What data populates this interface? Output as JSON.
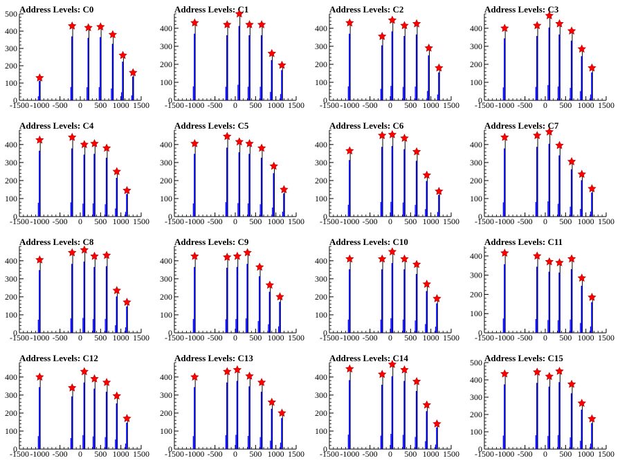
{
  "chart_data": [
    {
      "type": "bar",
      "title": "Address Levels: C0",
      "xlim": [
        -1500,
        1500
      ],
      "ylim": [
        0,
        500
      ],
      "yticks": [
        0,
        100,
        200,
        300,
        400,
        500
      ],
      "peaks": [
        {
          "x": -1000,
          "y": 130
        },
        {
          "x": -200,
          "y": 430
        },
        {
          "x": 200,
          "y": 420
        },
        {
          "x": 500,
          "y": 425
        },
        {
          "x": 800,
          "y": 380
        },
        {
          "x": 1050,
          "y": 260
        },
        {
          "x": 1300,
          "y": 160
        }
      ]
    },
    {
      "type": "bar",
      "title": "Address Levels: C1",
      "xlim": [
        -1500,
        1500
      ],
      "ylim": [
        0,
        480
      ],
      "yticks": [
        0,
        100,
        200,
        300,
        400
      ],
      "peaks": [
        {
          "x": -1000,
          "y": 430
        },
        {
          "x": -200,
          "y": 420
        },
        {
          "x": 100,
          "y": 480
        },
        {
          "x": 350,
          "y": 420
        },
        {
          "x": 650,
          "y": 420
        },
        {
          "x": 900,
          "y": 260
        },
        {
          "x": 1150,
          "y": 195
        }
      ]
    },
    {
      "type": "bar",
      "title": "Address Levels: C2",
      "xlim": [
        -1500,
        1500
      ],
      "ylim": [
        0,
        480
      ],
      "yticks": [
        0,
        100,
        200,
        300,
        400
      ],
      "peaks": [
        {
          "x": -1000,
          "y": 430
        },
        {
          "x": -200,
          "y": 355
        },
        {
          "x": 50,
          "y": 445
        },
        {
          "x": 350,
          "y": 415
        },
        {
          "x": 650,
          "y": 425
        },
        {
          "x": 950,
          "y": 290
        },
        {
          "x": 1200,
          "y": 180
        }
      ]
    },
    {
      "type": "bar",
      "title": "Address Levels: C3",
      "xlim": [
        -1500,
        1500
      ],
      "ylim": [
        0,
        480
      ],
      "yticks": [
        0,
        100,
        200,
        300,
        400
      ],
      "peaks": [
        {
          "x": -1000,
          "y": 400
        },
        {
          "x": -200,
          "y": 415
        },
        {
          "x": 100,
          "y": 470
        },
        {
          "x": 350,
          "y": 425
        },
        {
          "x": 650,
          "y": 385
        },
        {
          "x": 900,
          "y": 285
        },
        {
          "x": 1150,
          "y": 180
        }
      ]
    },
    {
      "type": "bar",
      "title": "Address Levels: C4",
      "xlim": [
        -1500,
        1500
      ],
      "ylim": [
        0,
        480
      ],
      "yticks": [
        0,
        100,
        200,
        300,
        400
      ],
      "peaks": [
        {
          "x": -1000,
          "y": 425
        },
        {
          "x": -200,
          "y": 440
        },
        {
          "x": 100,
          "y": 400
        },
        {
          "x": 350,
          "y": 405
        },
        {
          "x": 650,
          "y": 380
        },
        {
          "x": 900,
          "y": 250
        },
        {
          "x": 1150,
          "y": 145
        }
      ]
    },
    {
      "type": "bar",
      "title": "Address Levels: C5",
      "xlim": [
        -1500,
        1500
      ],
      "ylim": [
        0,
        480
      ],
      "yticks": [
        0,
        100,
        200,
        300,
        400
      ],
      "peaks": [
        {
          "x": -1000,
          "y": 405
        },
        {
          "x": -200,
          "y": 445
        },
        {
          "x": 100,
          "y": 415
        },
        {
          "x": 350,
          "y": 405
        },
        {
          "x": 650,
          "y": 380
        },
        {
          "x": 950,
          "y": 280
        },
        {
          "x": 1200,
          "y": 150
        }
      ]
    },
    {
      "type": "bar",
      "title": "Address Levels: C6",
      "xlim": [
        -1500,
        1500
      ],
      "ylim": [
        0,
        480
      ],
      "yticks": [
        0,
        100,
        200,
        300,
        400
      ],
      "peaks": [
        {
          "x": -1000,
          "y": 365
        },
        {
          "x": -200,
          "y": 450
        },
        {
          "x": 50,
          "y": 455
        },
        {
          "x": 350,
          "y": 435
        },
        {
          "x": 650,
          "y": 360
        },
        {
          "x": 900,
          "y": 230
        },
        {
          "x": 1200,
          "y": 140
        }
      ]
    },
    {
      "type": "bar",
      "title": "Address Levels: C7",
      "xlim": [
        -1500,
        1500
      ],
      "ylim": [
        0,
        480
      ],
      "yticks": [
        0,
        100,
        200,
        300,
        400
      ],
      "peaks": [
        {
          "x": -1000,
          "y": 440
        },
        {
          "x": -200,
          "y": 450
        },
        {
          "x": 100,
          "y": 470
        },
        {
          "x": 350,
          "y": 395
        },
        {
          "x": 650,
          "y": 305
        },
        {
          "x": 900,
          "y": 235
        },
        {
          "x": 1150,
          "y": 155
        }
      ]
    },
    {
      "type": "bar",
      "title": "Address Levels: C8",
      "xlim": [
        -1500,
        1500
      ],
      "ylim": [
        0,
        480
      ],
      "yticks": [
        0,
        100,
        200,
        300,
        400
      ],
      "peaks": [
        {
          "x": -1000,
          "y": 405
        },
        {
          "x": -200,
          "y": 445
        },
        {
          "x": 100,
          "y": 460
        },
        {
          "x": 350,
          "y": 425
        },
        {
          "x": 650,
          "y": 430
        },
        {
          "x": 900,
          "y": 235
        },
        {
          "x": 1150,
          "y": 170
        }
      ]
    },
    {
      "type": "bar",
      "title": "Address Levels: C9",
      "xlim": [
        -1500,
        1500
      ],
      "ylim": [
        0,
        480
      ],
      "yticks": [
        0,
        100,
        200,
        300,
        400
      ],
      "peaks": [
        {
          "x": -1000,
          "y": 425
        },
        {
          "x": -200,
          "y": 420
        },
        {
          "x": 50,
          "y": 425
        },
        {
          "x": 300,
          "y": 445
        },
        {
          "x": 600,
          "y": 365
        },
        {
          "x": 850,
          "y": 265
        },
        {
          "x": 1100,
          "y": 200
        }
      ]
    },
    {
      "type": "bar",
      "title": "Address Levels: C10",
      "xlim": [
        -1500,
        1500
      ],
      "ylim": [
        0,
        480
      ],
      "yticks": [
        0,
        100,
        200,
        300,
        400
      ],
      "peaks": [
        {
          "x": -1000,
          "y": 410
        },
        {
          "x": -200,
          "y": 410
        },
        {
          "x": 50,
          "y": 450
        },
        {
          "x": 350,
          "y": 410
        },
        {
          "x": 650,
          "y": 380
        },
        {
          "x": 900,
          "y": 270
        },
        {
          "x": 1150,
          "y": 190
        }
      ]
    },
    {
      "type": "bar",
      "title": "Address Levels: C11",
      "xlim": [
        -1500,
        1500
      ],
      "ylim": [
        0,
        450
      ],
      "yticks": [
        0,
        100,
        200,
        300,
        400
      ],
      "peaks": [
        {
          "x": -1000,
          "y": 415
        },
        {
          "x": -200,
          "y": 400
        },
        {
          "x": 100,
          "y": 370
        },
        {
          "x": 350,
          "y": 365
        },
        {
          "x": 650,
          "y": 385
        },
        {
          "x": 900,
          "y": 285
        },
        {
          "x": 1150,
          "y": 185
        }
      ]
    },
    {
      "type": "bar",
      "title": "Address Levels: C12",
      "xlim": [
        -1500,
        1500
      ],
      "ylim": [
        0,
        480
      ],
      "yticks": [
        0,
        100,
        200,
        300,
        400
      ],
      "peaks": [
        {
          "x": -1000,
          "y": 400
        },
        {
          "x": -200,
          "y": 340
        },
        {
          "x": 100,
          "y": 430
        },
        {
          "x": 350,
          "y": 390
        },
        {
          "x": 650,
          "y": 370
        },
        {
          "x": 900,
          "y": 295
        },
        {
          "x": 1150,
          "y": 170
        }
      ]
    },
    {
      "type": "bar",
      "title": "Address Levels: C13",
      "xlim": [
        -1500,
        1500
      ],
      "ylim": [
        0,
        480
      ],
      "yticks": [
        0,
        100,
        200,
        300,
        400
      ],
      "peaks": [
        {
          "x": -1000,
          "y": 400
        },
        {
          "x": -200,
          "y": 430
        },
        {
          "x": 50,
          "y": 440
        },
        {
          "x": 350,
          "y": 405
        },
        {
          "x": 650,
          "y": 370
        },
        {
          "x": 900,
          "y": 260
        },
        {
          "x": 1150,
          "y": 200
        }
      ]
    },
    {
      "type": "bar",
      "title": "Address Levels: C14",
      "xlim": [
        -1500,
        1500
      ],
      "ylim": [
        0,
        480
      ],
      "yticks": [
        0,
        100,
        200,
        300,
        400
      ],
      "peaks": [
        {
          "x": -1000,
          "y": 445
        },
        {
          "x": -200,
          "y": 415
        },
        {
          "x": 50,
          "y": 470
        },
        {
          "x": 350,
          "y": 440
        },
        {
          "x": 650,
          "y": 375
        },
        {
          "x": 900,
          "y": 245
        },
        {
          "x": 1150,
          "y": 140
        }
      ]
    },
    {
      "type": "bar",
      "title": "Address Levels: C15",
      "xlim": [
        -1500,
        1500
      ],
      "ylim": [
        0,
        500
      ],
      "yticks": [
        0,
        100,
        200,
        300,
        400,
        500
      ],
      "peaks": [
        {
          "x": -1000,
          "y": 435
        },
        {
          "x": -200,
          "y": 445
        },
        {
          "x": 100,
          "y": 420
        },
        {
          "x": 350,
          "y": 450
        },
        {
          "x": 650,
          "y": 375
        },
        {
          "x": 900,
          "y": 265
        },
        {
          "x": 1150,
          "y": 175
        }
      ]
    }
  ],
  "xticks": [
    -1500,
    -1000,
    -500,
    0,
    500,
    1000,
    1500
  ],
  "colors": {
    "bars": "#0000ff",
    "spikes": "#000000",
    "markers": "#ff0000",
    "axis": "#000000"
  }
}
